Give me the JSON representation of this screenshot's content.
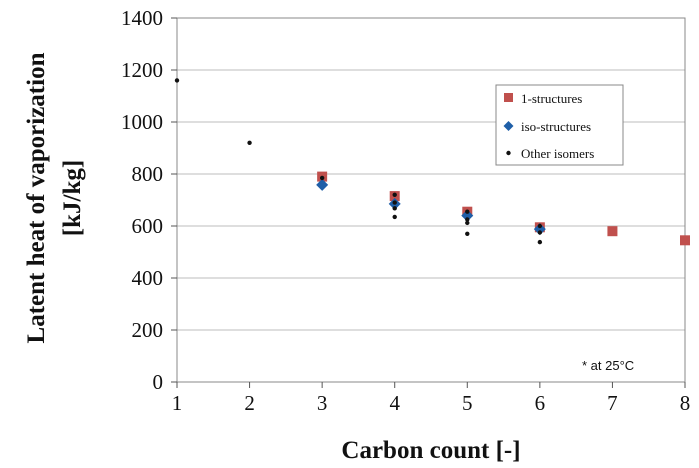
{
  "chart_data": {
    "type": "scatter",
    "xlabel": "Carbon count [-]",
    "ylabel_line1": "Latent heat of vaporization",
    "ylabel_line2": "[kJ/kg]",
    "xlim": [
      1,
      8
    ],
    "ylim": [
      0,
      1400
    ],
    "x_ticks": [
      "1",
      "2",
      "3",
      "4",
      "5",
      "6",
      "7",
      "8"
    ],
    "y_ticks": [
      "0",
      "200",
      "400",
      "600",
      "800",
      "1000",
      "1200",
      "1400"
    ],
    "grid": "horizontal",
    "legend_position": "right",
    "note": "* at 25°C",
    "colors": {
      "n": "#c0504d",
      "iso": "#1f5fa8",
      "other": "#111111"
    },
    "series": [
      {
        "name": "1-structures",
        "marker": "square",
        "points": [
          [
            3,
            790
          ],
          [
            4,
            715
          ],
          [
            5,
            655
          ],
          [
            6,
            595
          ],
          [
            7,
            580
          ],
          [
            8,
            545
          ]
        ]
      },
      {
        "name": "iso-structures",
        "marker": "diamond",
        "points": [
          [
            3,
            758
          ],
          [
            4,
            685
          ],
          [
            5,
            640
          ],
          [
            6,
            588
          ]
        ]
      },
      {
        "name": "Other isomers",
        "marker": "dot",
        "points": [
          [
            1,
            1160
          ],
          [
            2,
            920
          ],
          [
            3,
            785
          ],
          [
            4,
            720
          ],
          [
            4,
            690
          ],
          [
            4,
            668
          ],
          [
            4,
            635
          ],
          [
            5,
            655
          ],
          [
            5,
            625
          ],
          [
            5,
            612
          ],
          [
            5,
            570
          ],
          [
            6,
            600
          ],
          [
            6,
            575
          ],
          [
            6,
            538
          ]
        ]
      }
    ]
  }
}
